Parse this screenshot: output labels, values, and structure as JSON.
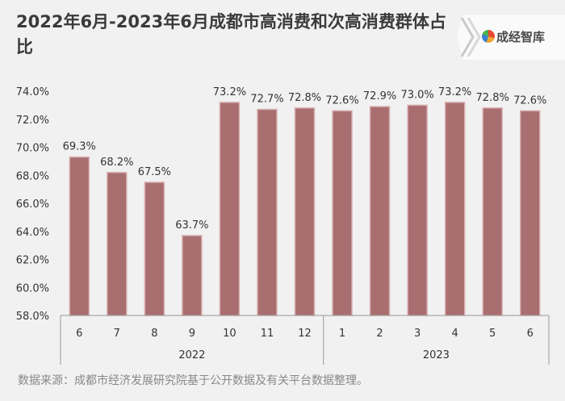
{
  "title": "2022年6月-2023年6月成都市高消费和次高消费群体占比",
  "brand": {
    "name": "成经智库",
    "colors": [
      "#e84a2f",
      "#f2a531",
      "#3b7fd3",
      "#4bb04f"
    ]
  },
  "source": "数据来源：成都市经济发展研究院基于公开数据及有关平台数据整理。",
  "chart_data": {
    "type": "bar",
    "categories": [
      "6",
      "7",
      "8",
      "9",
      "10",
      "11",
      "12",
      "1",
      "2",
      "3",
      "4",
      "5",
      "6"
    ],
    "groups": [
      {
        "label": "2022",
        "count": 7
      },
      {
        "label": "2023",
        "count": 6
      }
    ],
    "values": [
      69.3,
      68.2,
      67.5,
      63.7,
      73.2,
      72.7,
      72.8,
      72.6,
      72.9,
      73.0,
      73.2,
      72.8,
      72.6
    ],
    "data_labels": [
      "69.3%",
      "68.2%",
      "67.5%",
      "63.7%",
      "73.2%",
      "72.7%",
      "72.8%",
      "72.6%",
      "72.9%",
      "73.0%",
      "73.2%",
      "72.8%",
      "72.6%"
    ],
    "ylim": [
      58,
      74
    ],
    "yticks": [
      "58.0%",
      "60.0%",
      "62.0%",
      "64.0%",
      "66.0%",
      "68.0%",
      "70.0%",
      "72.0%",
      "74.0%"
    ],
    "ytick_values": [
      58,
      60,
      62,
      64,
      66,
      68,
      70,
      72,
      74
    ],
    "grid": false,
    "bar_color": "#a86e70",
    "bar_edge_color": "#d9aeb0"
  }
}
